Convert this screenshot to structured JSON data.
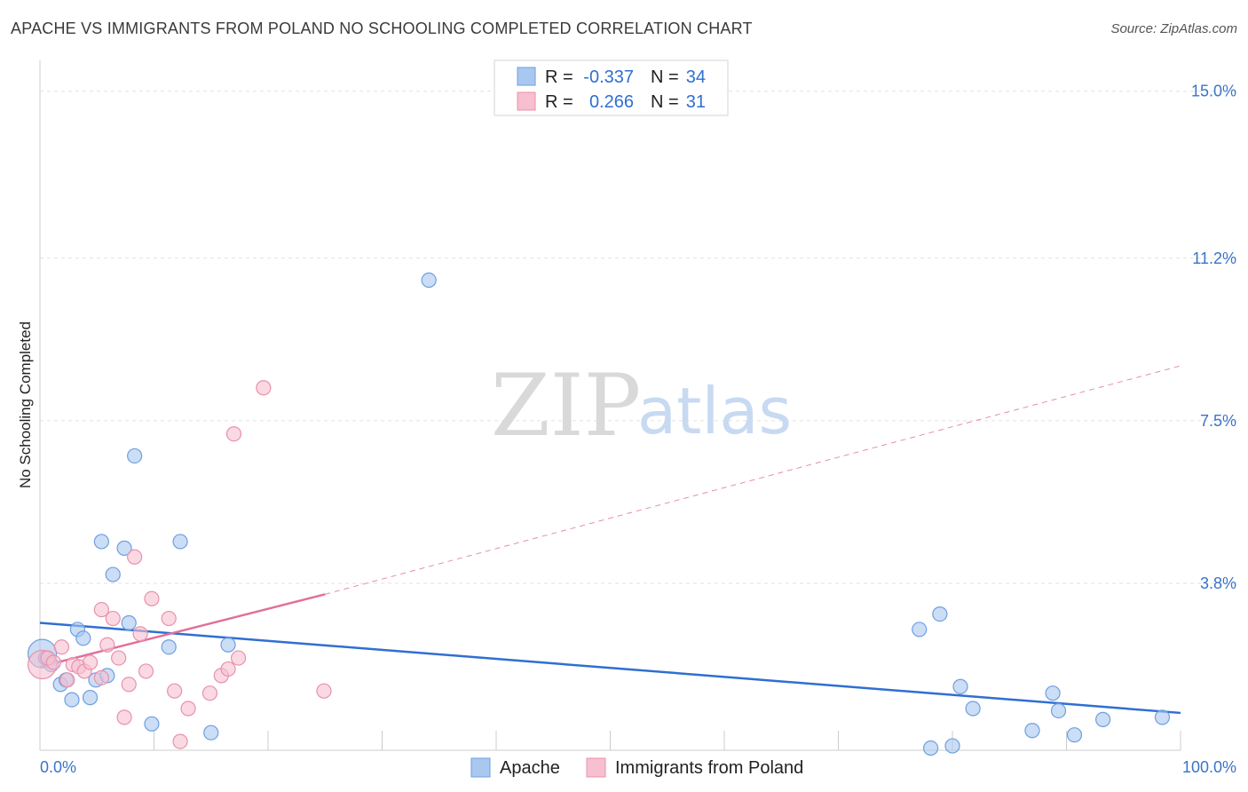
{
  "header": {
    "title": "APACHE VS IMMIGRANTS FROM POLAND NO SCHOOLING COMPLETED CORRELATION CHART",
    "source": "Source: ZipAtlas.com"
  },
  "legend_top": [
    {
      "r_label": "R =",
      "r_value": "-0.337",
      "n_label": "N =",
      "n_value": "34",
      "color": "#a9c8f0",
      "stroke": "#6f9ee0"
    },
    {
      "r_label": "R =",
      "r_value": "0.266",
      "n_label": "N =",
      "n_value": "31",
      "color": "#f7bfd0",
      "stroke": "#e891ad"
    }
  ],
  "watermark": {
    "zip": "ZIP",
    "atlas": "atlas"
  },
  "chart_data": {
    "type": "scatter",
    "title": "APACHE VS IMMIGRANTS FROM POLAND NO SCHOOLING COMPLETED CORRELATION CHART",
    "xlabel": "",
    "ylabel": "No Schooling Completed",
    "xlim": [
      0,
      100
    ],
    "ylim": [
      0,
      15.5
    ],
    "x_tick_labels": [
      "0.0%",
      "100.0%"
    ],
    "y_ticks": [
      3.8,
      7.5,
      11.2,
      15.0
    ],
    "y_tick_labels": [
      "3.8%",
      "7.5%",
      "11.2%",
      "15.0%"
    ],
    "grid": true,
    "legend_position": "top-center",
    "series": [
      {
        "name": "Apache",
        "color": "#a9c8f0",
        "stroke": "#6f9ee0",
        "trend_color": "#2f6fd1",
        "trend": {
          "x": [
            0,
            100
          ],
          "y": [
            2.9,
            0.85
          ]
        },
        "points": [
          {
            "x": 0.2,
            "y": 2.2,
            "s": 16
          },
          {
            "x": 0.5,
            "y": 2.1
          },
          {
            "x": 1.0,
            "y": 1.95
          },
          {
            "x": 1.8,
            "y": 1.5
          },
          {
            "x": 2.3,
            "y": 1.6
          },
          {
            "x": 2.8,
            "y": 1.15
          },
          {
            "x": 3.3,
            "y": 2.75
          },
          {
            "x": 3.8,
            "y": 2.55
          },
          {
            "x": 4.4,
            "y": 1.2
          },
          {
            "x": 4.9,
            "y": 1.6
          },
          {
            "x": 5.4,
            "y": 4.75
          },
          {
            "x": 5.9,
            "y": 1.7
          },
          {
            "x": 6.4,
            "y": 4.0
          },
          {
            "x": 7.4,
            "y": 4.6
          },
          {
            "x": 7.8,
            "y": 2.9
          },
          {
            "x": 8.3,
            "y": 6.7
          },
          {
            "x": 9.8,
            "y": 0.6
          },
          {
            "x": 11.3,
            "y": 2.35
          },
          {
            "x": 12.3,
            "y": 4.75
          },
          {
            "x": 15.0,
            "y": 0.4
          },
          {
            "x": 16.5,
            "y": 2.4
          },
          {
            "x": 34.1,
            "y": 10.7
          },
          {
            "x": 77.1,
            "y": 2.75
          },
          {
            "x": 78.1,
            "y": 0.05
          },
          {
            "x": 78.9,
            "y": 3.1
          },
          {
            "x": 80.0,
            "y": 0.1
          },
          {
            "x": 80.7,
            "y": 1.45
          },
          {
            "x": 81.8,
            "y": 0.95
          },
          {
            "x": 87.0,
            "y": 0.45
          },
          {
            "x": 88.8,
            "y": 1.3
          },
          {
            "x": 89.3,
            "y": 0.9
          },
          {
            "x": 90.7,
            "y": 0.35
          },
          {
            "x": 93.2,
            "y": 0.7
          },
          {
            "x": 98.4,
            "y": 0.75
          }
        ]
      },
      {
        "name": "Immigrants from Poland",
        "color": "#f7bfd0",
        "stroke": "#e891ad",
        "trend_color": "#e0709a",
        "trend": {
          "x": [
            0,
            25
          ],
          "y": [
            1.9,
            3.55
          ]
        },
        "trend_ext": {
          "x": [
            25,
            100
          ],
          "y": [
            3.55,
            8.75
          ]
        },
        "points": [
          {
            "x": 0.2,
            "y": 1.95,
            "s": 16
          },
          {
            "x": 0.7,
            "y": 2.1
          },
          {
            "x": 1.2,
            "y": 2.0
          },
          {
            "x": 1.9,
            "y": 2.35
          },
          {
            "x": 2.4,
            "y": 1.6
          },
          {
            "x": 2.9,
            "y": 1.95
          },
          {
            "x": 3.4,
            "y": 1.9
          },
          {
            "x": 3.9,
            "y": 1.8
          },
          {
            "x": 4.4,
            "y": 2.0
          },
          {
            "x": 5.4,
            "y": 1.65
          },
          {
            "x": 5.4,
            "y": 3.2
          },
          {
            "x": 5.9,
            "y": 2.4
          },
          {
            "x": 6.4,
            "y": 3.0
          },
          {
            "x": 6.9,
            "y": 2.1
          },
          {
            "x": 7.4,
            "y": 0.75
          },
          {
            "x": 7.8,
            "y": 1.5
          },
          {
            "x": 8.3,
            "y": 4.4
          },
          {
            "x": 8.8,
            "y": 2.65
          },
          {
            "x": 9.3,
            "y": 1.8
          },
          {
            "x": 9.8,
            "y": 3.45
          },
          {
            "x": 11.3,
            "y": 3.0
          },
          {
            "x": 11.8,
            "y": 1.35
          },
          {
            "x": 12.3,
            "y": 0.2
          },
          {
            "x": 13.0,
            "y": 0.95
          },
          {
            "x": 14.9,
            "y": 1.3
          },
          {
            "x": 15.9,
            "y": 1.7
          },
          {
            "x": 16.5,
            "y": 1.85
          },
          {
            "x": 17.4,
            "y": 2.1
          },
          {
            "x": 17.0,
            "y": 7.2
          },
          {
            "x": 19.6,
            "y": 8.25
          },
          {
            "x": 24.9,
            "y": 1.35
          }
        ]
      }
    ]
  },
  "bottom_legend": [
    {
      "label": "Apache",
      "color": "#a9c8f0",
      "stroke": "#6f9ee0"
    },
    {
      "label": "Immigrants from Poland",
      "color": "#f7bfd0",
      "stroke": "#e891ad"
    }
  ]
}
